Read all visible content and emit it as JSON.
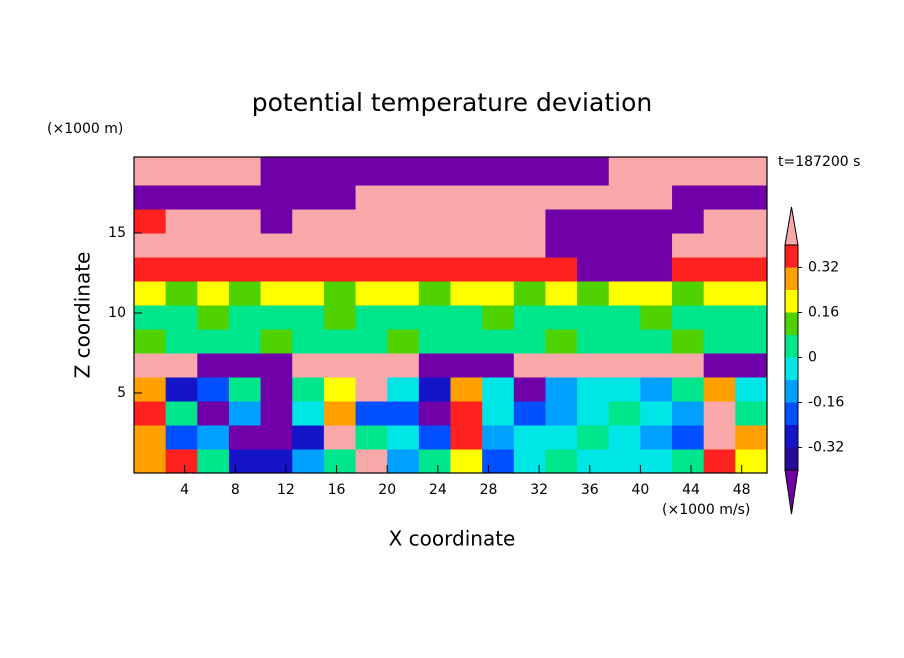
{
  "chart_data": {
    "type": "contour",
    "title": "potential temperature deviation",
    "xlabel": "X coordinate",
    "ylabel": "Z coordinate",
    "xunit": "(×1000 m/s)",
    "yunit": "(×1000 m)",
    "time_label": "t=187200 s",
    "xlim": [
      0,
      50
    ],
    "ylim": [
      0,
      19.75
    ],
    "xticks": [
      4,
      8,
      12,
      16,
      20,
      24,
      28,
      32,
      36,
      40,
      44,
      48
    ],
    "yticks": [
      5,
      10,
      15
    ],
    "x": [
      1.25,
      3.75,
      6.25,
      8.75,
      11.25,
      13.75,
      16.25,
      18.75,
      21.25,
      23.75,
      26.25,
      28.75,
      31.25,
      33.75,
      36.25,
      38.75,
      41.25,
      43.75,
      46.25,
      48.75
    ],
    "y": [
      0.75,
      2.25,
      3.75,
      5.25,
      6.75,
      8.25,
      9.75,
      11.25,
      12.75,
      14.25,
      15.75,
      17.25,
      18.75
    ],
    "z": [
      [
        0.28,
        0.36,
        0.04,
        -0.28,
        -0.28,
        -0.12,
        0.04,
        0.5,
        -0.12,
        0.04,
        0.2,
        -0.2,
        -0.04,
        0.04,
        -0.04,
        -0.04,
        -0.04,
        0.04,
        0.36,
        0.2
      ],
      [
        0.28,
        -0.2,
        -0.12,
        -0.45,
        -0.45,
        -0.28,
        0.5,
        0.04,
        -0.04,
        -0.2,
        0.36,
        -0.12,
        -0.04,
        -0.04,
        0.04,
        -0.04,
        -0.12,
        -0.2,
        0.5,
        0.28
      ],
      [
        0.36,
        0.04,
        -0.45,
        -0.12,
        -0.45,
        -0.04,
        0.28,
        -0.2,
        -0.2,
        -0.45,
        0.36,
        -0.04,
        -0.2,
        -0.12,
        -0.04,
        0.04,
        -0.04,
        -0.12,
        0.5,
        0.04
      ],
      [
        0.28,
        -0.28,
        -0.2,
        0.04,
        -0.45,
        0.04,
        0.2,
        0.5,
        -0.04,
        -0.28,
        0.28,
        -0.04,
        -0.45,
        -0.12,
        -0.04,
        -0.04,
        -0.12,
        0.04,
        0.28,
        -0.04
      ],
      [
        0.5,
        0.5,
        -0.45,
        -0.45,
        -0.45,
        0.5,
        0.5,
        0.5,
        0.5,
        -0.45,
        -0.45,
        -0.45,
        0.5,
        0.5,
        0.5,
        0.5,
        0.5,
        0.5,
        -0.45,
        -0.45
      ],
      [
        0.12,
        0.04,
        0.04,
        0.04,
        0.12,
        0.04,
        0.04,
        0.04,
        0.12,
        0.04,
        0.04,
        0.04,
        0.04,
        0.12,
        0.04,
        0.04,
        0.04,
        0.12,
        0.04,
        0.04
      ],
      [
        0.04,
        0.04,
        0.12,
        0.04,
        0.04,
        0.04,
        0.12,
        0.04,
        0.04,
        0.04,
        0.04,
        0.12,
        0.04,
        0.04,
        0.04,
        0.04,
        0.12,
        0.04,
        0.04,
        0.04
      ],
      [
        0.2,
        0.12,
        0.2,
        0.12,
        0.2,
        0.2,
        0.12,
        0.2,
        0.2,
        0.12,
        0.2,
        0.2,
        0.12,
        0.2,
        0.12,
        0.2,
        0.2,
        0.12,
        0.2,
        0.2
      ],
      [
        0.36,
        0.36,
        0.36,
        0.36,
        0.36,
        0.36,
        0.36,
        0.36,
        0.36,
        0.36,
        0.36,
        0.36,
        0.36,
        0.36,
        -0.45,
        -0.45,
        -0.45,
        0.36,
        0.36,
        0.36
      ],
      [
        0.5,
        0.5,
        0.5,
        0.5,
        0.5,
        0.5,
        0.5,
        0.5,
        0.5,
        0.5,
        0.5,
        0.5,
        0.5,
        -0.45,
        -0.45,
        -0.45,
        -0.45,
        0.5,
        0.5,
        0.5
      ],
      [
        0.36,
        0.5,
        0.5,
        0.5,
        -0.45,
        0.5,
        0.5,
        0.5,
        0.5,
        0.5,
        0.5,
        0.5,
        0.5,
        -0.45,
        -0.45,
        -0.45,
        -0.45,
        -0.45,
        0.5,
        0.5
      ],
      [
        -0.45,
        -0.45,
        -0.45,
        -0.45,
        -0.45,
        -0.45,
        -0.45,
        0.5,
        0.5,
        0.5,
        0.5,
        0.5,
        0.5,
        0.5,
        0.5,
        0.5,
        0.5,
        -0.45,
        -0.45,
        -0.45
      ],
      [
        0.5,
        0.5,
        0.5,
        0.5,
        -0.45,
        -0.45,
        -0.45,
        -0.45,
        -0.45,
        -0.45,
        -0.45,
        -0.45,
        -0.45,
        -0.45,
        -0.45,
        0.5,
        0.5,
        0.5,
        0.5,
        0.5
      ]
    ],
    "levels": [
      -0.4,
      -0.32,
      -0.24,
      -0.16,
      -0.08,
      0,
      0.08,
      0.16,
      0.24,
      0.32,
      0.4
    ],
    "colors": [
      "#7000a8",
      "#2a0a9a",
      "#1414c8",
      "#0050ff",
      "#00a0ff",
      "#00e6e6",
      "#00e68c",
      "#50d200",
      "#ffff00",
      "#ffa000",
      "#ff2020",
      "#f8a8a8"
    ],
    "colorbar_ticks": [
      0.32,
      0.16,
      0,
      -0.16,
      -0.32
    ]
  }
}
